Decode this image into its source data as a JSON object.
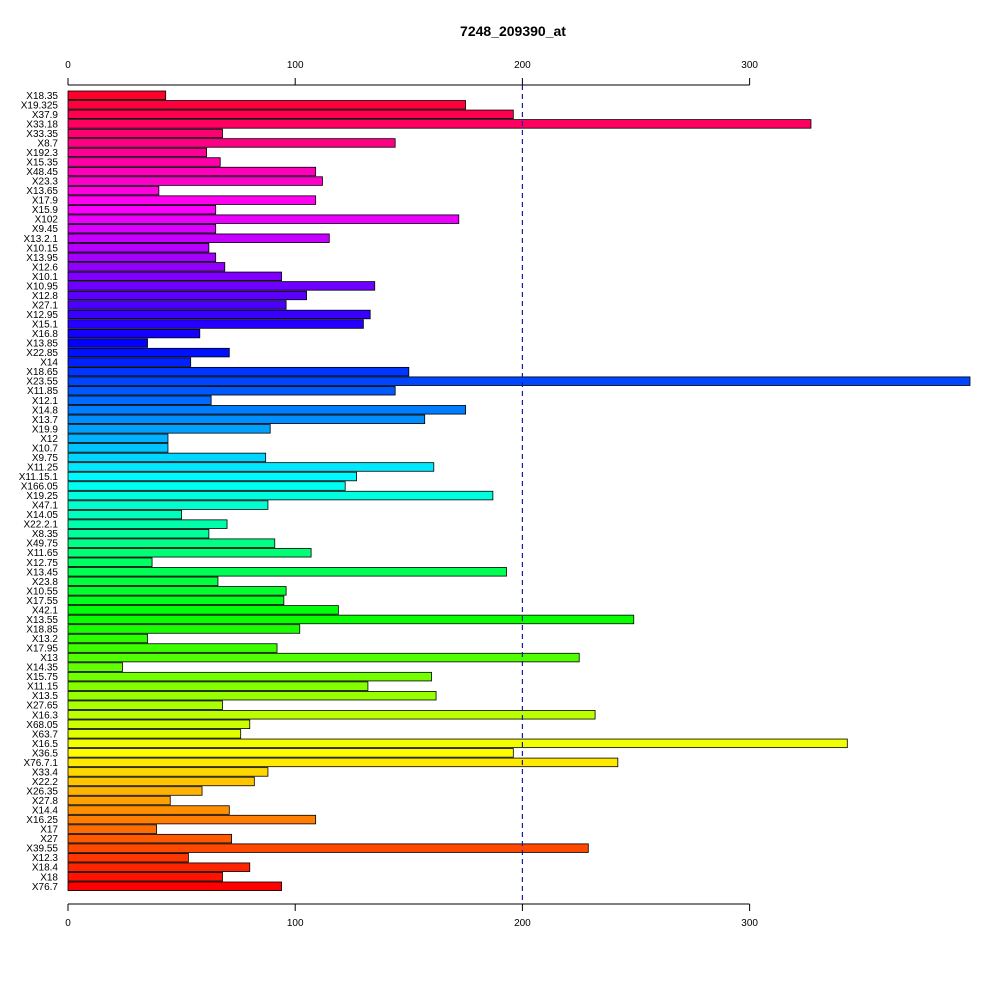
{
  "chart_data": {
    "type": "bar",
    "orientation": "horizontal",
    "title": "7248_209390_at",
    "xlabel": "",
    "ylabel": "",
    "xlim": [
      0,
      397
    ],
    "ticks": [
      0,
      100,
      200,
      300
    ],
    "reference_line": 200,
    "reference_line_style": "dashed",
    "reference_line_color": "#1a1aa8",
    "bar_colors": "rainbow (red to blue to red)",
    "categories": [
      "X18.35",
      "X19.325",
      "X37.9",
      "X33.18",
      "X33.35",
      "X8.7",
      "X192.3",
      "X15.35",
      "X48.45",
      "X23.3",
      "X13.65",
      "X17.9",
      "X15.9",
      "X102",
      "X9.45",
      "X13.2.1",
      "X10.15",
      "X13.95",
      "X12.6",
      "X10.1",
      "X10.95",
      "X12.8",
      "X27.1",
      "X12.95",
      "X15.1",
      "X16.8",
      "X13.85",
      "X22.85",
      "X14",
      "X18.65",
      "X23.55",
      "X11.85",
      "X12.1",
      "X14.8",
      "X13.7",
      "X19.9",
      "X12",
      "X10.7",
      "X9.75",
      "X11.25",
      "X11.15.1",
      "X166.05",
      "X19.25",
      "X47.1",
      "X14.05",
      "X22.2.1",
      "X8.35",
      "X49.75",
      "X11.65",
      "X12.75",
      "X13.45",
      "X23.8",
      "X10.55",
      "X17.55",
      "X42.1",
      "X13.55",
      "X18.85",
      "X13.2",
      "X17.95",
      "X13",
      "X14.35",
      "X15.75",
      "X11.15",
      "X13.5",
      "X27.65",
      "X16.3",
      "X68.05",
      "X63.7",
      "X16.5",
      "X36.5",
      "X76.7.1",
      "X33.4",
      "X22.2",
      "X26.35",
      "X27.8",
      "X14.4",
      "X16.25",
      "X17",
      "X27",
      "X39.55",
      "X12.3",
      "X18.4",
      "X18",
      "X76.7"
    ],
    "values": [
      43,
      175,
      196,
      327,
      68,
      144,
      61,
      67,
      109,
      112,
      40,
      109,
      65,
      172,
      65,
      115,
      62,
      65,
      69,
      94,
      135,
      105,
      96,
      133,
      130,
      58,
      35,
      71,
      54,
      150,
      397,
      144,
      63,
      175,
      157,
      89,
      44,
      44,
      87,
      161,
      127,
      122,
      187,
      88,
      50,
      70,
      62,
      91,
      107,
      37,
      193,
      66,
      96,
      95,
      119,
      249,
      102,
      35,
      92,
      225,
      24,
      160,
      132,
      162,
      68,
      232,
      80,
      76,
      343,
      196,
      242,
      88,
      82,
      59,
      45,
      71,
      109,
      39,
      72,
      229,
      53,
      80,
      68,
      94
    ]
  }
}
